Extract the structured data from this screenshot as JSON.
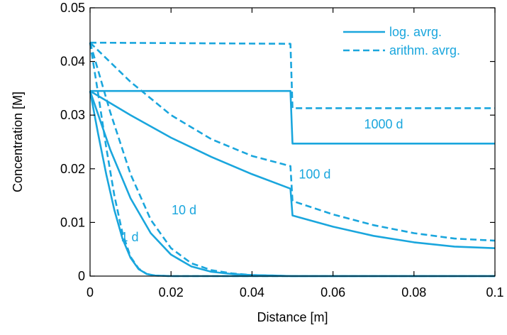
{
  "chart_data": {
    "type": "line",
    "xlabel": "Distance [m]",
    "ylabel": "Concentration [M]",
    "xlim": [
      0,
      0.1
    ],
    "ylim": [
      0,
      0.05
    ],
    "xticks": [
      0,
      0.02,
      0.04,
      0.06,
      0.08,
      0.1
    ],
    "xtick_labels": [
      "0",
      "0.02",
      "0.04",
      "0.06",
      "0.08",
      "0.1"
    ],
    "yticks": [
      0,
      0.01,
      0.02,
      0.03,
      0.04,
      0.05
    ],
    "ytick_labels": [
      "0",
      "0.01",
      "0.02",
      "0.03",
      "0.04",
      "0.05"
    ],
    "grid": false,
    "legend_position": "top-right",
    "legend": [
      {
        "label": "log. avrg.",
        "style": "solid"
      },
      {
        "label": "arithm. avrg.",
        "style": "dashed"
      }
    ],
    "color": "#1aa6dd",
    "annotations": [
      {
        "text": "1 d",
        "x": 0.0098,
        "y": 0.0065
      },
      {
        "text": "10 d",
        "x": 0.0232,
        "y": 0.0115
      },
      {
        "text": "100 d",
        "x": 0.0555,
        "y": 0.0182
      },
      {
        "text": "1000 d",
        "x": 0.0725,
        "y": 0.0275
      }
    ],
    "series": [
      {
        "time": "1 d",
        "style": "solid",
        "x": [
          0,
          0.002,
          0.004,
          0.006,
          0.008,
          0.01,
          0.012,
          0.014,
          0.016,
          0.02,
          0.03,
          0.05,
          0.1
        ],
        "y": [
          0.0345,
          0.0265,
          0.019,
          0.0123,
          0.007,
          0.0034,
          0.0013,
          0.0004,
          0.0001,
          0.0,
          0.0,
          0.0,
          0.0
        ]
      },
      {
        "time": "1 d",
        "style": "dashed",
        "x": [
          0,
          0.002,
          0.004,
          0.006,
          0.008,
          0.01,
          0.012,
          0.014,
          0.016,
          0.02,
          0.03,
          0.05,
          0.1
        ],
        "y": [
          0.0435,
          0.034,
          0.024,
          0.015,
          0.008,
          0.0036,
          0.0014,
          0.0004,
          0.0001,
          0.0,
          0.0,
          0.0,
          0.0
        ]
      },
      {
        "time": "10 d",
        "style": "solid",
        "x": [
          0,
          0.005,
          0.01,
          0.015,
          0.02,
          0.025,
          0.03,
          0.035,
          0.04,
          0.045,
          0.05,
          0.06,
          0.1
        ],
        "y": [
          0.0345,
          0.0235,
          0.0145,
          0.008,
          0.004,
          0.0018,
          0.0008,
          0.0004,
          0.0002,
          0.0001,
          0.0,
          0.0,
          0.0
        ]
      },
      {
        "time": "10 d",
        "style": "dashed",
        "x": [
          0,
          0.005,
          0.01,
          0.015,
          0.02,
          0.025,
          0.03,
          0.035,
          0.04,
          0.045,
          0.05,
          0.06,
          0.1
        ],
        "y": [
          0.0435,
          0.0305,
          0.019,
          0.0105,
          0.0052,
          0.0024,
          0.0011,
          0.0005,
          0.0002,
          0.0001,
          0.0,
          0.0,
          0.0
        ]
      },
      {
        "time": "100 d",
        "style": "solid",
        "x": [
          0,
          0.01,
          0.02,
          0.03,
          0.04,
          0.0495,
          0.05,
          0.06,
          0.07,
          0.08,
          0.09,
          0.1
        ],
        "y": [
          0.0345,
          0.03,
          0.0258,
          0.0222,
          0.019,
          0.0163,
          0.0113,
          0.0092,
          0.0075,
          0.0063,
          0.0055,
          0.0052
        ]
      },
      {
        "time": "100 d",
        "style": "dashed",
        "x": [
          0,
          0.01,
          0.02,
          0.03,
          0.04,
          0.0495,
          0.05,
          0.06,
          0.07,
          0.08,
          0.09,
          0.1
        ],
        "y": [
          0.0435,
          0.0362,
          0.03,
          0.0255,
          0.0224,
          0.0205,
          0.014,
          0.0115,
          0.0095,
          0.008,
          0.007,
          0.0066
        ]
      },
      {
        "time": "1000 d",
        "style": "solid",
        "x": [
          0,
          0.0495,
          0.05,
          0.1
        ],
        "y": [
          0.0345,
          0.0345,
          0.0247,
          0.0247
        ]
      },
      {
        "time": "1000 d",
        "style": "dashed",
        "x": [
          0,
          0.0495,
          0.05,
          0.1
        ],
        "y": [
          0.0435,
          0.0433,
          0.0313,
          0.0313
        ]
      }
    ]
  }
}
